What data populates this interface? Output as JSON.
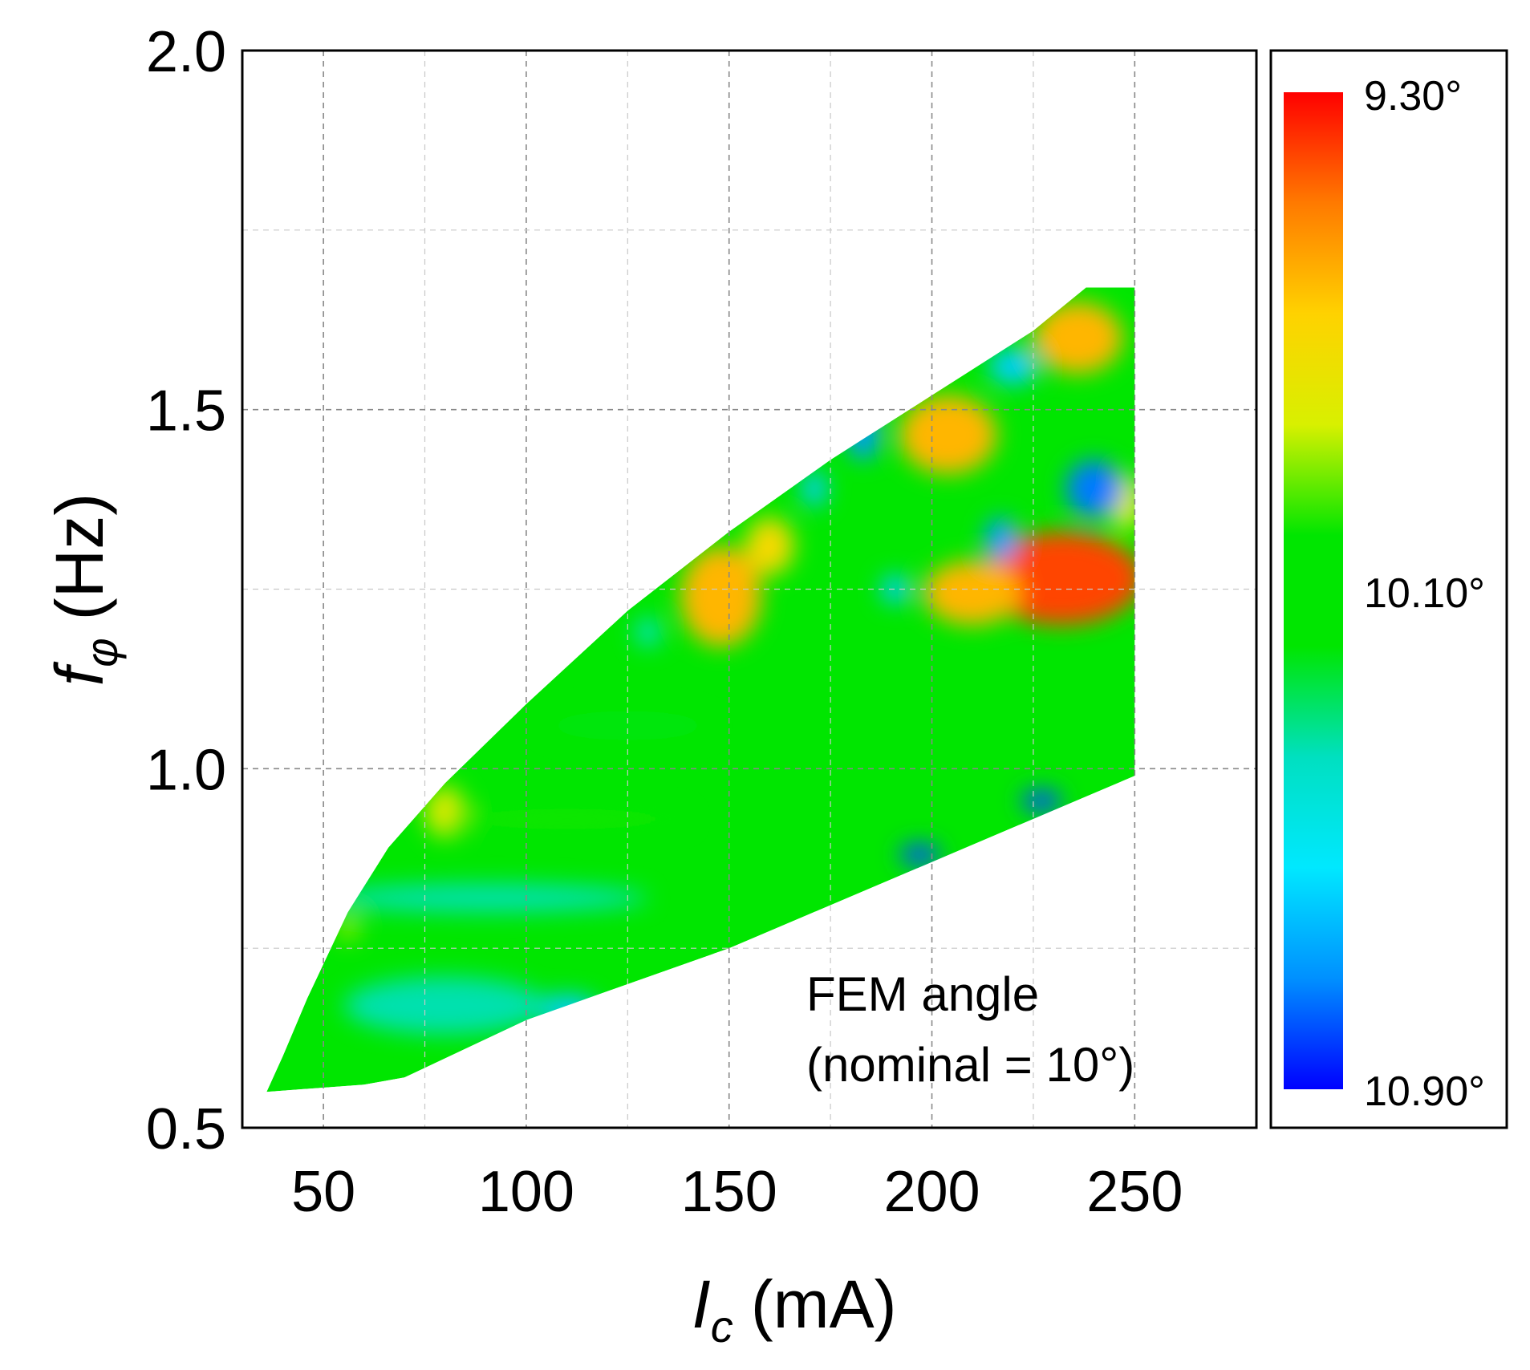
{
  "chart_data": {
    "type": "heatmap",
    "title": "",
    "xlabel_main": "I",
    "xlabel_sub": "c",
    "xlabel_unit": "(mA)",
    "ylabel_main": "f",
    "ylabel_sub": "φ",
    "ylabel_unit": "(Hz)",
    "xlim": [
      30,
      280
    ],
    "ylim": [
      0.5,
      2.0
    ],
    "x_ticks": [
      "50",
      "100",
      "150",
      "200",
      "250"
    ],
    "x_tick_values": [
      50,
      100,
      150,
      200,
      250
    ],
    "y_ticks": [
      "0.5",
      "1.0",
      "1.5",
      "2.0"
    ],
    "y_tick_values": [
      0.5,
      1.0,
      1.5,
      2.0
    ],
    "grid_x": [
      50,
      75,
      100,
      125,
      150,
      175,
      200,
      225,
      250
    ],
    "grid_y": [
      0.75,
      1.0,
      1.25,
      1.5,
      1.75
    ],
    "grid": true,
    "annotation_line1": "FEM angle",
    "annotation_line2": "(nominal = 10°)",
    "colorbar": {
      "label_top": "9.30°",
      "label_mid": "10.10°",
      "label_bottom": "10.90°",
      "min_value": 9.3,
      "mid_value": 10.1,
      "max_value": 10.9,
      "colors": [
        "#ff0000",
        "#ff7a00",
        "#ffd200",
        "#d8f000",
        "#00e600",
        "#00e600",
        "#00e0c0",
        "#00e8ff",
        "#0090ff",
        "#0000ff"
      ]
    },
    "domain_boundary": [
      [
        36,
        0.55
      ],
      [
        40,
        0.6
      ],
      [
        46,
        0.68
      ],
      [
        56,
        0.8
      ],
      [
        66,
        0.89
      ],
      [
        80,
        0.98
      ],
      [
        100,
        1.09
      ],
      [
        125,
        1.22
      ],
      [
        150,
        1.33
      ],
      [
        175,
        1.43
      ],
      [
        200,
        1.52
      ],
      [
        225,
        1.61
      ],
      [
        238,
        1.67
      ],
      [
        250,
        1.67
      ],
      [
        250,
        0.99
      ],
      [
        200,
        0.87
      ],
      [
        150,
        0.75
      ],
      [
        100,
        0.65
      ],
      [
        70,
        0.57
      ],
      [
        60,
        0.56
      ],
      [
        36,
        0.55
      ]
    ],
    "base_value": 10.1,
    "regions": [
      {
        "x": 232,
        "y": 1.265,
        "rx": 20,
        "ry": 0.065,
        "value": 9.4
      },
      {
        "x": 210,
        "y": 1.245,
        "rx": 12,
        "ry": 0.045,
        "value": 9.6
      },
      {
        "x": 236,
        "y": 1.6,
        "rx": 11,
        "ry": 0.05,
        "value": 9.6
      },
      {
        "x": 204,
        "y": 1.465,
        "rx": 12,
        "ry": 0.055,
        "value": 9.6
      },
      {
        "x": 148,
        "y": 1.24,
        "rx": 10,
        "ry": 0.07,
        "value": 9.6
      },
      {
        "x": 160,
        "y": 1.31,
        "rx": 6,
        "ry": 0.04,
        "value": 9.7
      },
      {
        "x": 80,
        "y": 0.94,
        "rx": 5,
        "ry": 0.035,
        "value": 9.8
      },
      {
        "x": 56,
        "y": 0.78,
        "rx": 3,
        "ry": 0.02,
        "value": 9.9
      },
      {
        "x": 110,
        "y": 0.93,
        "rx": 30,
        "ry": 0.015,
        "value": 10.0
      },
      {
        "x": 248,
        "y": 1.37,
        "rx": 4,
        "ry": 0.04,
        "value": 9.8
      },
      {
        "x": 217,
        "y": 1.32,
        "rx": 4,
        "ry": 0.03,
        "value": 10.7
      },
      {
        "x": 240,
        "y": 1.39,
        "rx": 7,
        "ry": 0.04,
        "value": 10.75
      },
      {
        "x": 191,
        "y": 1.25,
        "rx": 3.5,
        "ry": 0.02,
        "value": 10.6
      },
      {
        "x": 183,
        "y": 1.465,
        "rx": 4,
        "ry": 0.035,
        "value": 10.7
      },
      {
        "x": 171,
        "y": 1.39,
        "rx": 3,
        "ry": 0.025,
        "value": 10.6
      },
      {
        "x": 220,
        "y": 1.56,
        "rx": 6,
        "ry": 0.025,
        "value": 10.6
      },
      {
        "x": 197,
        "y": 0.88,
        "rx": 5,
        "ry": 0.015,
        "value": 10.8
      },
      {
        "x": 227,
        "y": 0.955,
        "rx": 5,
        "ry": 0.015,
        "value": 10.8
      },
      {
        "x": 110,
        "y": 0.665,
        "rx": 8,
        "ry": 0.02,
        "value": 10.6
      },
      {
        "x": 90,
        "y": 0.82,
        "rx": 40,
        "ry": 0.02,
        "value": 10.35
      },
      {
        "x": 80,
        "y": 0.67,
        "rx": 25,
        "ry": 0.04,
        "value": 10.35
      },
      {
        "x": 130,
        "y": 1.19,
        "rx": 3,
        "ry": 0.02,
        "value": 10.4
      },
      {
        "x": 125,
        "y": 1.06,
        "rx": 20,
        "ry": 0.02,
        "value": 10.2
      }
    ]
  }
}
